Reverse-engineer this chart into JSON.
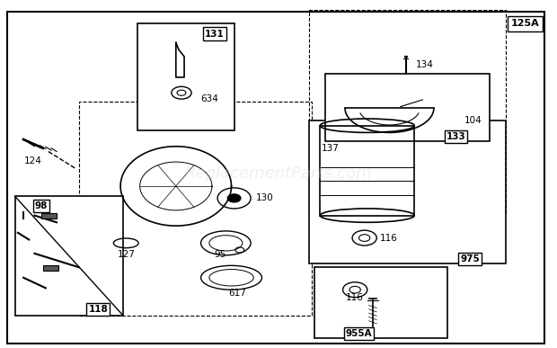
{
  "bg_color": "#ffffff",
  "outer_border": [
    0.01,
    0.01,
    0.98,
    0.97
  ],
  "watermark": "ReplacementParts.com"
}
